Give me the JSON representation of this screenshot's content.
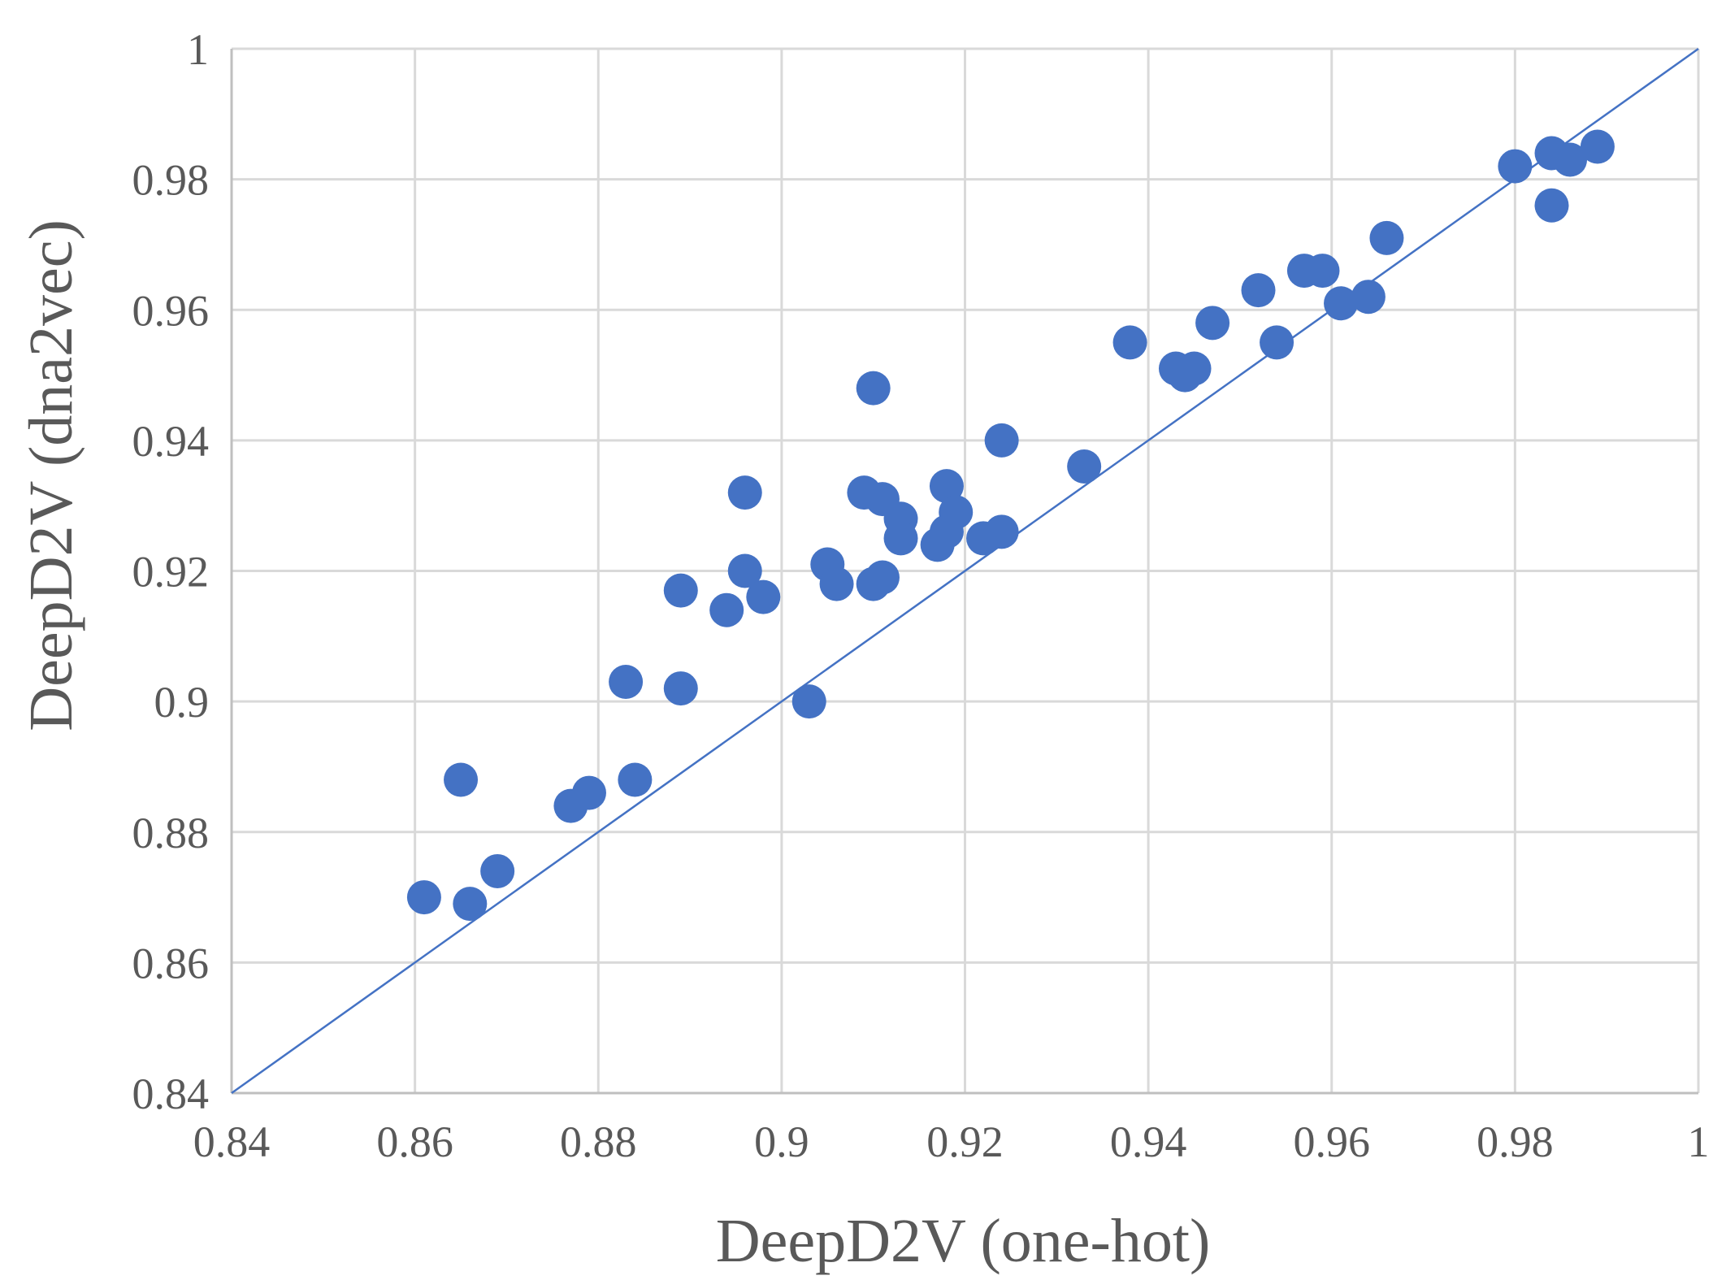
{
  "chart_data": {
    "type": "scatter",
    "title": "",
    "xlabel": "DeepD2V (one-hot)",
    "ylabel": "DeepD2V (dna2vec)",
    "xlim": [
      0.84,
      1.0
    ],
    "ylim": [
      0.84,
      1.0
    ],
    "x_ticks": [
      "0.84",
      "0.86",
      "0.88",
      "0.9",
      "0.92",
      "0.94",
      "0.96",
      "0.98",
      "1"
    ],
    "y_ticks": [
      "0.84",
      "0.86",
      "0.88",
      "0.9",
      "0.92",
      "0.94",
      "0.96",
      "0.98",
      "1"
    ],
    "grid": true,
    "reference_line": {
      "name": "y = x",
      "from": [
        0.84,
        0.84
      ],
      "to": [
        1.0,
        1.0
      ]
    },
    "series": [
      {
        "name": "points",
        "color": "#4472C4",
        "points": [
          [
            0.861,
            0.87
          ],
          [
            0.865,
            0.888
          ],
          [
            0.866,
            0.869
          ],
          [
            0.869,
            0.874
          ],
          [
            0.877,
            0.884
          ],
          [
            0.879,
            0.886
          ],
          [
            0.883,
            0.903
          ],
          [
            0.884,
            0.888
          ],
          [
            0.889,
            0.917
          ],
          [
            0.889,
            0.902
          ],
          [
            0.894,
            0.914
          ],
          [
            0.896,
            0.932
          ],
          [
            0.896,
            0.92
          ],
          [
            0.898,
            0.916
          ],
          [
            0.903,
            0.9
          ],
          [
            0.905,
            0.921
          ],
          [
            0.906,
            0.918
          ],
          [
            0.909,
            0.932
          ],
          [
            0.91,
            0.948
          ],
          [
            0.91,
            0.918
          ],
          [
            0.911,
            0.931
          ],
          [
            0.911,
            0.919
          ],
          [
            0.913,
            0.928
          ],
          [
            0.913,
            0.925
          ],
          [
            0.917,
            0.924
          ],
          [
            0.918,
            0.933
          ],
          [
            0.918,
            0.926
          ],
          [
            0.919,
            0.929
          ],
          [
            0.922,
            0.925
          ],
          [
            0.924,
            0.94
          ],
          [
            0.924,
            0.926
          ],
          [
            0.933,
            0.936
          ],
          [
            0.938,
            0.955
          ],
          [
            0.943,
            0.951
          ],
          [
            0.944,
            0.95
          ],
          [
            0.945,
            0.951
          ],
          [
            0.947,
            0.958
          ],
          [
            0.952,
            0.963
          ],
          [
            0.954,
            0.955
          ],
          [
            0.957,
            0.966
          ],
          [
            0.959,
            0.966
          ],
          [
            0.961,
            0.961
          ],
          [
            0.964,
            0.962
          ],
          [
            0.966,
            0.971
          ],
          [
            0.98,
            0.982
          ],
          [
            0.984,
            0.984
          ],
          [
            0.984,
            0.976
          ],
          [
            0.986,
            0.983
          ],
          [
            0.989,
            0.985
          ]
        ]
      }
    ]
  }
}
